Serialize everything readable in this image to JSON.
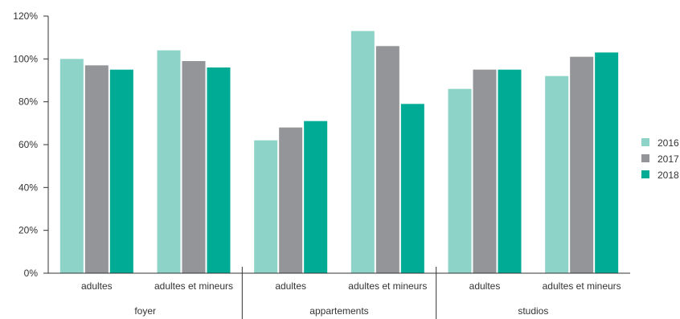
{
  "chart_data": {
    "type": "bar",
    "title": "",
    "xlabel": "",
    "ylabel": "",
    "ylim": [
      0,
      120
    ],
    "y_ticks": [
      "0%",
      "20%",
      "40%",
      "60%",
      "80%",
      "100%",
      "120%"
    ],
    "y_tick_values": [
      0,
      20,
      40,
      60,
      80,
      100,
      120
    ],
    "groups": [
      "foyer",
      "appartements",
      "studios"
    ],
    "categories": [
      "adultes",
      "adultes et mineurs",
      "adultes",
      "adultes et mineurs",
      "adultes",
      "adultes et mineurs"
    ],
    "category_group": [
      0,
      0,
      1,
      1,
      2,
      2
    ],
    "series": [
      {
        "name": "2016",
        "color": "#8dd3c7",
        "values": [
          100,
          104,
          62,
          113,
          86,
          92
        ]
      },
      {
        "name": "2017",
        "color": "#939598",
        "values": [
          97,
          99,
          68,
          106,
          95,
          101
        ]
      },
      {
        "name": "2018",
        "color": "#00ab96",
        "values": [
          95,
          96,
          71,
          79,
          95,
          103
        ]
      }
    ],
    "grid": false,
    "legend_position": "right"
  }
}
